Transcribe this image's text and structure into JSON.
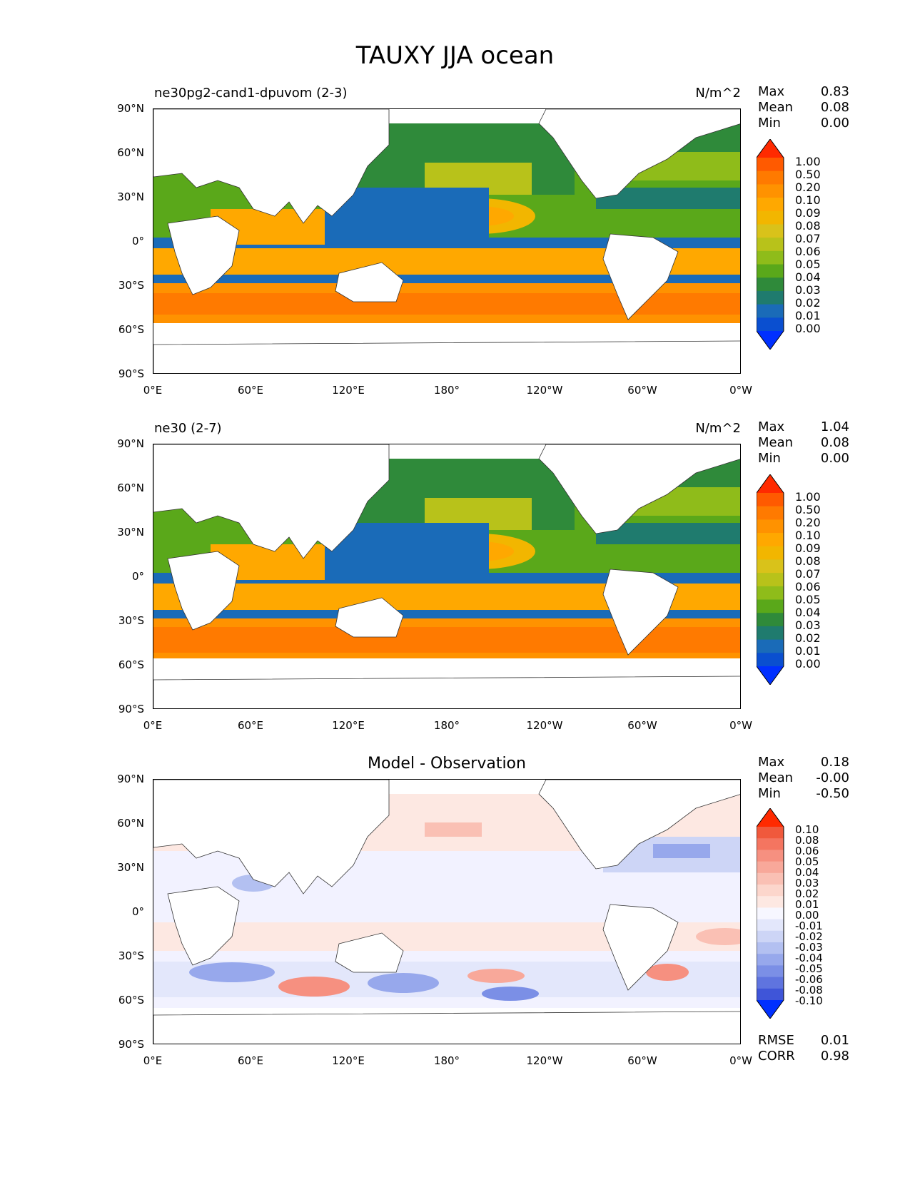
{
  "figure_title": "TAUXY JJA ocean",
  "lat_labels": [
    "90°N",
    "60°N",
    "30°N",
    "0°",
    "30°S",
    "60°S",
    "90°S"
  ],
  "lon_labels": [
    "0°E",
    "60°E",
    "120°E",
    "180°",
    "120°W",
    "60°W",
    "0°W"
  ],
  "panels": [
    {
      "title_left": "ne30pg2-cand1-dpuvom (2-3)",
      "title_right": "N/m^2",
      "stats": [
        {
          "label": "Max",
          "value": "0.83"
        },
        {
          "label": "Mean",
          "value": "0.08"
        },
        {
          "label": "Min",
          "value": "0.00"
        }
      ],
      "colorbar_labels": [
        "1.00",
        "0.50",
        "0.20",
        "0.10",
        "0.09",
        "0.08",
        "0.07",
        "0.06",
        "0.05",
        "0.04",
        "0.03",
        "0.02",
        "0.01",
        "0.00"
      ]
    },
    {
      "title_left": "ne30 (2-7)",
      "title_right": "N/m^2",
      "stats": [
        {
          "label": "Max",
          "value": "1.04"
        },
        {
          "label": "Mean",
          "value": "0.08"
        },
        {
          "label": "Min",
          "value": "0.00"
        }
      ],
      "colorbar_labels": [
        "1.00",
        "0.50",
        "0.20",
        "0.10",
        "0.09",
        "0.08",
        "0.07",
        "0.06",
        "0.05",
        "0.04",
        "0.03",
        "0.02",
        "0.01",
        "0.00"
      ]
    },
    {
      "title_center": "Model - Observation",
      "stats": [
        {
          "label": "Max",
          "value": "0.18"
        },
        {
          "label": "Mean",
          "value": "-0.00"
        },
        {
          "label": "Min",
          "value": "-0.50"
        }
      ],
      "colorbar_labels": [
        "0.10",
        "0.08",
        "0.06",
        "0.05",
        "0.04",
        "0.03",
        "0.02",
        "0.01",
        "0.00",
        "-0.01",
        "-0.02",
        "-0.03",
        "-0.04",
        "-0.05",
        "-0.06",
        "-0.08",
        "-0.10"
      ],
      "bottom_stats": [
        {
          "label": "RMSE",
          "value": "0.01"
        },
        {
          "label": "CORR",
          "value": "0.98"
        }
      ]
    }
  ],
  "colors": {
    "seq_top": "#ff2a00",
    "seq": [
      "#ff5a00",
      "#ff7a00",
      "#ff9200",
      "#ffa800",
      "#f2b600",
      "#d9c21a",
      "#b8c21a",
      "#8fbc1a",
      "#5aa81a",
      "#2f8a3a",
      "#1f7b6e",
      "#1a6bb8",
      "#0a4fd0"
    ],
    "seq_bottom": "#0030ff",
    "div_top": "#ff2a00",
    "div": [
      "#f0593c",
      "#f47560",
      "#f69080",
      "#f8a89a",
      "#fac0b4",
      "#fcd6cc",
      "#fde8e2",
      "#f7f7ff",
      "#e3e7fb",
      "#cdd5f6",
      "#b3c0f1",
      "#97a8ec",
      "#7b8fe6",
      "#5f74df",
      "#3f55d8"
    ],
    "div_bottom": "#0030ff"
  }
}
